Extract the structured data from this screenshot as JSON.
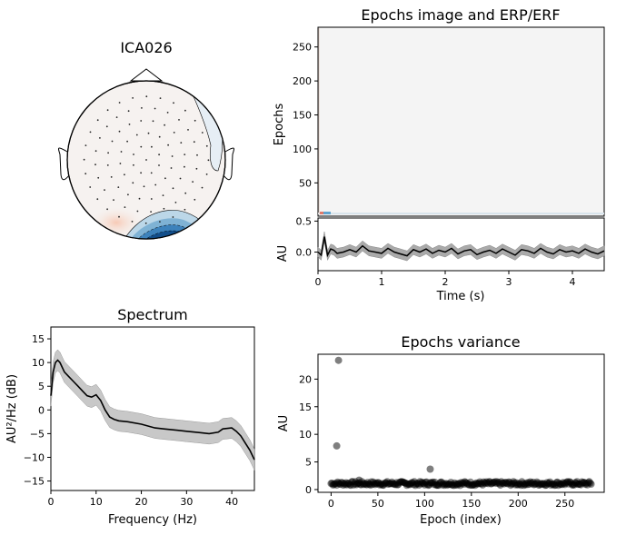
{
  "chart_data": [
    {
      "type": "topomap",
      "title": "ICA026"
    },
    {
      "type": "heatmap",
      "title": "Epochs image and ERP/ERF",
      "ylabel": "Epochs",
      "ylim": [
        1,
        279
      ],
      "yticks": [
        50,
        100,
        150,
        200,
        250
      ]
    },
    {
      "type": "line",
      "xlabel": "Time (s)",
      "ylabel": "AU",
      "xlim": [
        0,
        4.5
      ],
      "ylim": [
        -0.3,
        0.55
      ],
      "xticks": [
        0,
        1,
        2,
        3,
        4
      ],
      "yticks": [
        0.5,
        0.0
      ],
      "x": [
        0,
        0.05,
        0.1,
        0.15,
        0.2,
        0.25,
        0.3,
        0.4,
        0.5,
        0.6,
        0.7,
        0.8,
        0.9,
        1.0,
        1.1,
        1.2,
        1.3,
        1.4,
        1.5,
        1.6,
        1.7,
        1.8,
        1.9,
        2.0,
        2.1,
        2.2,
        2.3,
        2.4,
        2.5,
        2.6,
        2.7,
        2.8,
        2.9,
        3.0,
        3.1,
        3.2,
        3.3,
        3.4,
        3.5,
        3.6,
        3.7,
        3.8,
        3.9,
        4.0,
        4.1,
        4.2,
        4.3,
        4.4,
        4.5
      ],
      "values": [
        0.0,
        -0.05,
        0.25,
        -0.05,
        0.05,
        0.03,
        -0.02,
        0.0,
        0.04,
        0.0,
        0.1,
        0.02,
        0.0,
        -0.02,
        0.06,
        0.0,
        -0.03,
        -0.06,
        0.04,
        0.0,
        0.05,
        -0.02,
        0.03,
        0.0,
        0.06,
        -0.03,
        0.02,
        0.04,
        -0.04,
        0.0,
        0.03,
        -0.02,
        0.05,
        0.0,
        -0.05,
        0.04,
        0.02,
        -0.02,
        0.06,
        0.0,
        -0.03,
        0.04,
        0.0,
        0.02,
        -0.02,
        0.05,
        0.0,
        -0.03,
        0.02
      ],
      "band": 0.08
    },
    {
      "type": "line",
      "title": "Spectrum",
      "xlabel": "Frequency (Hz)",
      "ylabel": "AU²/Hz (dB)",
      "xlim": [
        0,
        45
      ],
      "ylim": [
        -17,
        17.5
      ],
      "xticks": [
        0,
        10,
        20,
        30,
        40
      ],
      "yticks": [
        15,
        10,
        5,
        0,
        -5,
        -10,
        -15
      ],
      "x": [
        0,
        0.5,
        1,
        1.5,
        2,
        3,
        4,
        5,
        6,
        7,
        8,
        9,
        10,
        11,
        12,
        13,
        14,
        15,
        17,
        20,
        23,
        25,
        28,
        30,
        33,
        35,
        37,
        38,
        40,
        41,
        42,
        43,
        44,
        45
      ],
      "values": [
        3,
        8,
        10,
        10.5,
        10,
        8,
        7,
        6,
        5,
        4,
        3,
        2.7,
        3.2,
        2,
        0,
        -1.5,
        -2,
        -2.3,
        -2.5,
        -3,
        -3.8,
        -4,
        -4.3,
        -4.5,
        -4.8,
        -5,
        -4.7,
        -4,
        -3.8,
        -4.5,
        -5.5,
        -7,
        -8.5,
        -10.5
      ],
      "band": 2.2
    },
    {
      "type": "scatter",
      "title": "Epochs variance",
      "xlabel": "Epoch (index)",
      "ylabel": "AU",
      "xlim": [
        -14,
        292
      ],
      "ylim": [
        -0.5,
        24.5
      ],
      "xticks": [
        0,
        50,
        100,
        150,
        200,
        250
      ],
      "yticks": [
        0,
        5,
        10,
        15,
        20
      ],
      "outliers": [
        {
          "x": 8,
          "y": 23.4
        },
        {
          "x": 6,
          "y": 7.9
        },
        {
          "x": 106,
          "y": 3.7
        },
        {
          "x": 30,
          "y": 1.7
        }
      ],
      "n_points": 279
    }
  ]
}
